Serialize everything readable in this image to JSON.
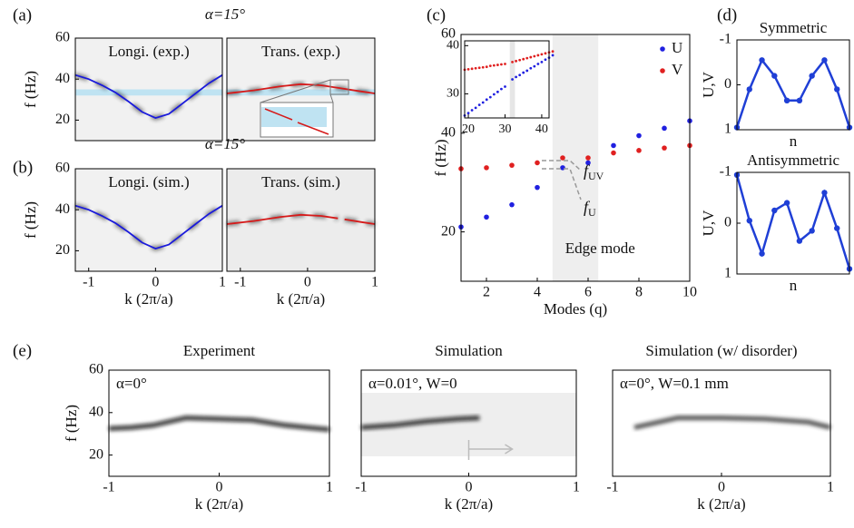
{
  "chart_data": [
    {
      "type": "line",
      "panel": "(a)",
      "annotation": "α=15°",
      "title": "Longi. (exp.)",
      "ylabel": "f (Hz)",
      "xlim": [
        -1.2,
        1
      ],
      "ylim": [
        10,
        60
      ],
      "yticks": [
        20,
        40,
        60
      ],
      "background": "#f1f1f1",
      "ridge": true,
      "band": [
        32,
        35
      ],
      "band_color": "#bfe3f2",
      "series": [
        {
          "color": "#1a1adb",
          "x": [
            -1.2,
            -1,
            -0.8,
            -0.6,
            -0.4,
            -0.2,
            0,
            0.2,
            0.4,
            0.6,
            0.8,
            1
          ],
          "values": [
            42,
            40,
            37,
            33.5,
            29,
            24,
            21,
            23,
            28,
            33,
            38,
            42
          ]
        }
      ]
    },
    {
      "type": "line",
      "title": "Trans. (exp.)",
      "xlim": [
        -1.2,
        1
      ],
      "ylim": [
        10,
        60
      ],
      "background": "#f1f1f1",
      "ridge": true,
      "band": [
        32,
        35
      ],
      "band_color": "#bfe3f2",
      "series": [
        {
          "color": "#d61a1a",
          "x": [
            -1.2,
            -0.8,
            -0.4,
            -0.1,
            0.2,
            0.5,
            0.8,
            1
          ],
          "values": [
            33,
            34.5,
            36.5,
            37.5,
            37,
            35.5,
            34,
            33
          ]
        }
      ]
    },
    {
      "type": "line",
      "panel": "(b)",
      "annotation": "α=15°",
      "title": "Longi. (sim.)",
      "ylabel": "f (Hz)",
      "xlabel": "k (2π/a)",
      "xlim": [
        -1.2,
        1
      ],
      "ylim": [
        10,
        60
      ],
      "xticks": [
        -1,
        0,
        1
      ],
      "yticks": [
        20,
        40,
        60
      ],
      "background": "#f1f1f1",
      "ridge": true,
      "series": [
        {
          "color": "#1a1adb",
          "x": [
            -1.2,
            -1,
            -0.8,
            -0.6,
            -0.4,
            -0.2,
            0,
            0.2,
            0.4,
            0.6,
            0.8,
            1
          ],
          "values": [
            42,
            40,
            37,
            33.5,
            29,
            24,
            21,
            23,
            28,
            33,
            38,
            42
          ]
        }
      ]
    },
    {
      "type": "line",
      "title": "Trans. (sim.)",
      "xlabel": "k (2π/a)",
      "xlim": [
        -1.2,
        1
      ],
      "ylim": [
        10,
        60
      ],
      "xticks": [
        -1,
        0,
        1
      ],
      "background": "#ececec",
      "ridge": true,
      "series": [
        {
          "color": "#d61a1a",
          "x": [
            -1.2,
            -0.8,
            -0.4,
            -0.1,
            0.2,
            0.45,
            0.5,
            0.55,
            0.8,
            1
          ],
          "values": [
            33,
            34.5,
            36.5,
            37.5,
            37,
            35.8,
            null,
            35.3,
            34,
            33
          ]
        }
      ]
    },
    {
      "type": "scatter",
      "panel": "(c)",
      "ylabel": "f (Hz)",
      "xlabel": "Modes (q)",
      "xlim": [
        1,
        10
      ],
      "ylim": [
        10,
        60
      ],
      "xticks": [
        2,
        4,
        6,
        8,
        10
      ],
      "yticks": [
        20,
        40,
        60
      ],
      "band": [
        4.6,
        6.4
      ],
      "band_color": "#eeeeee",
      "band_label": "Edge mode",
      "legend": "upper right",
      "annotations": [
        {
          "symbol": "f",
          "subscript": "UV"
        },
        {
          "symbol": "f",
          "subscript": "U"
        }
      ],
      "series": [
        {
          "name": "U",
          "color": "#2020e0",
          "x": [
            1,
            2,
            3,
            4,
            5,
            6,
            7,
            8,
            9,
            10
          ],
          "values": [
            21,
            23,
            25.5,
            29,
            33,
            34,
            37.5,
            39.5,
            41,
            42.5
          ]
        },
        {
          "name": "V",
          "color": "#e02020",
          "x": [
            1,
            2,
            3,
            4,
            5,
            6,
            7,
            8,
            9,
            10
          ],
          "values": [
            32.8,
            33,
            33.5,
            34,
            35,
            35,
            36,
            36.5,
            37,
            37.5
          ]
        }
      ],
      "inset": {
        "xlim": [
          19,
          42
        ],
        "ylim": [
          25,
          41
        ],
        "xticks": [
          20,
          30,
          40
        ],
        "yticks": [
          30,
          40
        ],
        "band": [
          31.3,
          32.7
        ],
        "series": [
          {
            "color": "#2020e0",
            "x": [
              19,
              20,
              21,
              22,
              23,
              24,
              25,
              26,
              27,
              28,
              29,
              30,
              32,
              33,
              34,
              35,
              36,
              37,
              38,
              39,
              40,
              41,
              42,
              43
            ],
            "values": [
              25.5,
              26,
              26.6,
              27.1,
              27.7,
              28.2,
              28.8,
              29.3,
              29.9,
              30.4,
              31,
              31.5,
              33,
              33.5,
              33.9,
              34.4,
              34.8,
              35.3,
              35.7,
              36.2,
              36.6,
              37.1,
              37.5,
              38
            ]
          },
          {
            "color": "#e02020",
            "x": [
              19,
              20,
              21,
              22,
              23,
              24,
              25,
              26,
              27,
              28,
              29,
              30,
              32,
              33,
              34,
              35,
              36,
              37,
              38,
              39,
              40,
              41,
              42,
              43
            ],
            "values": [
              35,
              35.1,
              35.2,
              35.3,
              35.4,
              35.5,
              35.6,
              35.8,
              35.9,
              36,
              36.1,
              36.2,
              36.6,
              36.8,
              37,
              37.2,
              37.4,
              37.6,
              37.8,
              38,
              38.2,
              38.4,
              38.6,
              38.8
            ]
          }
        ]
      }
    },
    {
      "type": "line",
      "panel": "(d)",
      "title": "Symmetric",
      "ylabel": "U,V",
      "xlabel": "n",
      "xlim": [
        1,
        10
      ],
      "ylim": [
        -1,
        1
      ],
      "y_inverted": true,
      "yticks": [
        -1,
        0,
        1
      ],
      "markers": true,
      "series": [
        {
          "color": "#1f3fd6",
          "x": [
            1,
            2,
            3,
            4,
            5,
            6,
            7,
            8,
            9,
            10
          ],
          "values": [
            0.95,
            0.1,
            -0.55,
            -0.2,
            0.35,
            0.35,
            -0.2,
            -0.55,
            0.1,
            0.95
          ]
        }
      ]
    },
    {
      "type": "line",
      "title": "Antisymmetric",
      "ylabel": "U,V",
      "xlabel": "n",
      "xlim": [
        1,
        10
      ],
      "ylim": [
        -1,
        1
      ],
      "y_inverted": true,
      "yticks": [
        -1,
        0,
        1
      ],
      "markers": true,
      "series": [
        {
          "color": "#1f3fd6",
          "x": [
            1,
            2,
            3,
            4,
            5,
            6,
            7,
            8,
            9,
            10
          ],
          "values": [
            -0.95,
            -0.05,
            0.6,
            -0.25,
            -0.4,
            0.35,
            0.15,
            -0.6,
            0.1,
            0.9
          ]
        }
      ]
    },
    {
      "type": "heatmap",
      "panel": "(e)",
      "title": "Experiment",
      "annotation": "α=0°",
      "ylabel": "f (Hz)",
      "xlabel": "k (2π/a)",
      "xlim": [
        -1,
        1
      ],
      "ylim": [
        10,
        60
      ],
      "xticks": [
        -1,
        0,
        1
      ],
      "yticks": [
        20,
        40,
        60
      ],
      "series": [
        {
          "color": "#111111",
          "x": [
            -1,
            -0.8,
            -0.6,
            -0.3,
            0,
            0.3,
            0.6,
            0.8,
            1
          ],
          "values": [
            32.5,
            33,
            34,
            37.5,
            37,
            36.5,
            34,
            33,
            32
          ]
        }
      ]
    },
    {
      "type": "heatmap",
      "title": "Simulation",
      "annotation": "α=0.01°, W=0",
      "xlabel": "k (2π/a)",
      "xlim": [
        -1,
        1
      ],
      "ylim": [
        10,
        60
      ],
      "xticks": [
        -1,
        0,
        1
      ],
      "series": [
        {
          "color": "#111111",
          "x": [
            -1,
            -0.7,
            -0.4,
            -0.1,
            0.1
          ],
          "values": [
            33,
            34,
            35.8,
            37,
            37.5
          ]
        }
      ]
    },
    {
      "type": "heatmap",
      "title": "Simulation (w/ disorder)",
      "annotation": "α=0°, W=0.1 mm",
      "xlabel": "k (2π/a)",
      "xlim": [
        -1,
        1
      ],
      "ylim": [
        10,
        60
      ],
      "xticks": [
        -1,
        0,
        1
      ],
      "series": [
        {
          "color": "#333333",
          "x": [
            -0.8,
            -0.4,
            0,
            0.4,
            0.8,
            1
          ],
          "values": [
            33,
            37.5,
            37.5,
            37,
            35.5,
            33
          ]
        }
      ]
    }
  ]
}
